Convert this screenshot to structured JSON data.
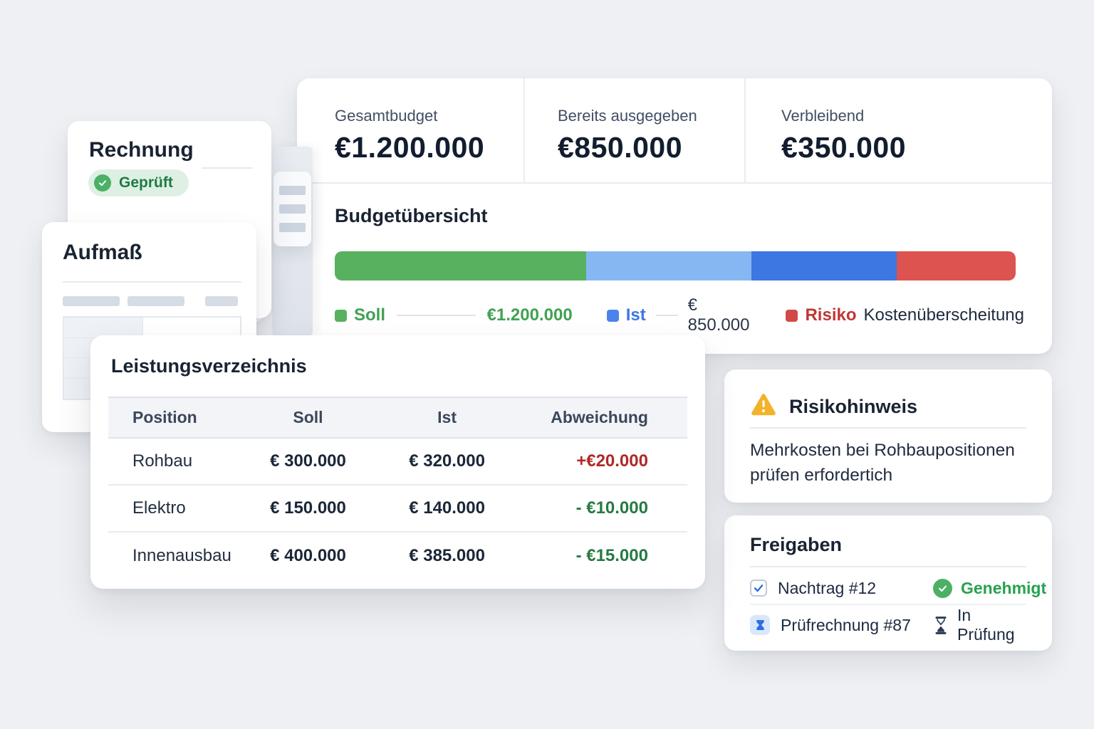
{
  "stats": {
    "items": [
      {
        "label": "Gesamtbudget",
        "value": "€1.200.000"
      },
      {
        "label": "Bereits ausgegeben",
        "value": "€850.000"
      },
      {
        "label": "Verbleibend",
        "value": "€350.000"
      }
    ]
  },
  "budget_overview": {
    "title": "Budgetübersicht",
    "segments": [
      {
        "key": "soll",
        "percent": 36.9,
        "color": "#57b15e"
      },
      {
        "key": "ist-light",
        "percent": 24.3,
        "color": "#86b7f3"
      },
      {
        "key": "ist-dark",
        "percent": 21.3,
        "color": "#3c77e2"
      },
      {
        "key": "risiko",
        "percent": 17.5,
        "color": "#dc5350"
      }
    ],
    "legend": {
      "soll": {
        "label": "Soll",
        "value": "€1.200.000"
      },
      "ist": {
        "label": "Ist",
        "value": "€ 850.000"
      },
      "risiko": {
        "label": "Risiko",
        "note": "Kostenüberscheitung"
      }
    }
  },
  "documents": {
    "rechnung": {
      "title": "Rechnung",
      "badge": "Geprüft"
    },
    "aufmass": {
      "title": "Aufmaß"
    }
  },
  "lv": {
    "title": "Leistungsverzeichnis",
    "columns": [
      "Position",
      "Soll",
      "Ist",
      "Abweichung"
    ],
    "rows": [
      {
        "position": "Rohbau",
        "soll": "€ 300.000",
        "ist": "€ 320.000",
        "abweichung": "+€20.000"
      },
      {
        "position": "Elektro",
        "soll": "€ 150.000",
        "ist": "€ 140.000",
        "abweichung": "- €10.000"
      },
      {
        "position": "Innenausbau",
        "soll": "€ 400.000",
        "ist": "€ 385.000",
        "abweichung": "- €15.000"
      }
    ]
  },
  "risk": {
    "title": "Risikohinweis",
    "message": "Mehrkosten bei Rohbaupositionen prüfen erfordertich"
  },
  "approvals": {
    "title": "Freigaben",
    "rows": [
      {
        "label": "Nachtrag #12",
        "status": "Genehmigt"
      },
      {
        "label": "Prüfrechnung #87",
        "status": "In Prüfung"
      }
    ]
  },
  "colors": {
    "accent_green": "#4cb065",
    "accent_blue": "#3c77e2",
    "accent_red": "#dc5350",
    "warning_amber": "#f2b32b"
  }
}
